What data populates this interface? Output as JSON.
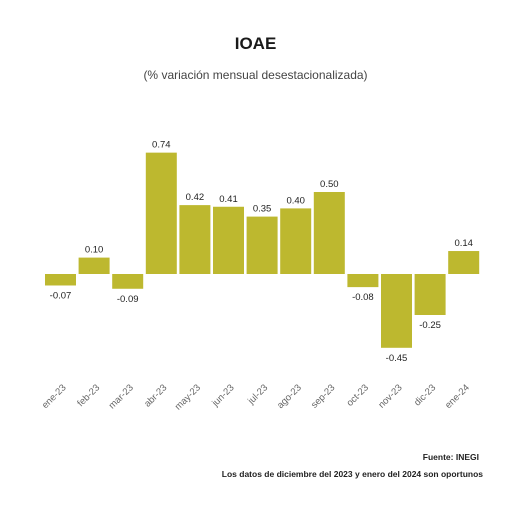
{
  "chart_data": {
    "type": "bar",
    "title": "IOAE",
    "subtitle": "(% variación mensual desestacionalizada)",
    "categories": [
      "ene-23",
      "feb-23",
      "mar-23",
      "abr-23",
      "may-23",
      "jun-23",
      "jul-23",
      "ago-23",
      "sep-23",
      "oct-23",
      "nov-23",
      "dic-23",
      "ene-24"
    ],
    "values": [
      -0.07,
      0.1,
      -0.09,
      0.74,
      0.42,
      0.41,
      0.35,
      0.4,
      0.5,
      -0.08,
      -0.45,
      -0.25,
      0.14
    ],
    "value_labels": [
      "-0.07",
      "0.10",
      "-0.09",
      "0.74",
      "0.42",
      "0.41",
      "0.35",
      "0.40",
      "0.50",
      "-0.08",
      "-0.45",
      "-0.25",
      "0.14"
    ],
    "bar_color": "#bdb82f",
    "grid": false,
    "legend": "none",
    "source": "Fuente: INEGI",
    "note": "Los datos de diciembre del 2023 y enero del 2024 son oportunos"
  }
}
